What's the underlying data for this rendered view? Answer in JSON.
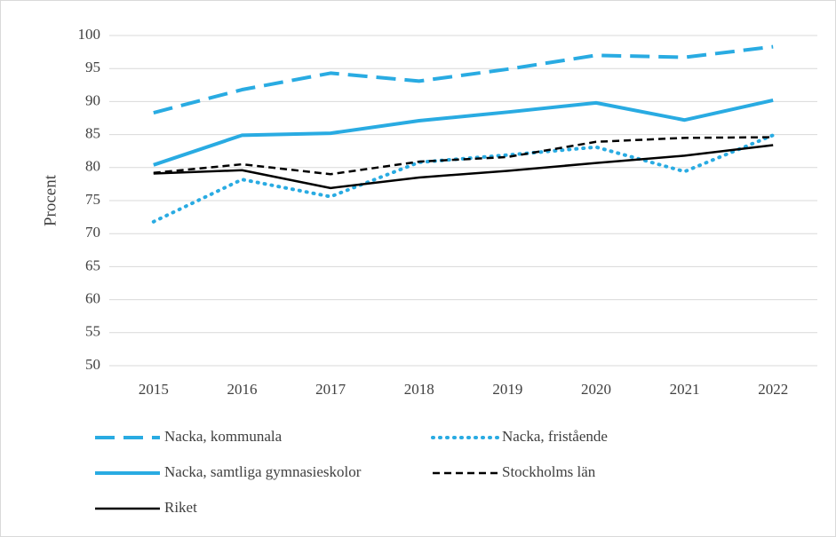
{
  "chart_data": {
    "type": "line",
    "y_label": "Procent",
    "categories": [
      "2015",
      "2016",
      "2017",
      "2018",
      "2019",
      "2020",
      "2021",
      "2022"
    ],
    "series": [
      {
        "name": "Nacka, kommunala",
        "color": "#29abe2",
        "dash": "dashed",
        "values": [
          88.3,
          91.8,
          94.3,
          93.1,
          94.9,
          97.0,
          96.7,
          98.3
        ]
      },
      {
        "name": "Nacka, fristående",
        "color": "#29abe2",
        "dash": "dotted",
        "values": [
          71.8,
          78.2,
          75.6,
          80.8,
          81.9,
          83.1,
          79.4,
          84.9
        ]
      },
      {
        "name": "Nacka, samtliga gymnasieskolor",
        "color": "#29abe2",
        "dash": "solid",
        "values": [
          80.4,
          84.9,
          85.2,
          87.1,
          88.4,
          89.8,
          87.2,
          90.2
        ]
      },
      {
        "name": "Stockholms län",
        "color": "#000000",
        "dash": "dashed",
        "values": [
          79.2,
          80.5,
          79.0,
          80.9,
          81.6,
          83.9,
          84.5,
          84.6
        ]
      },
      {
        "name": "Riket",
        "color": "#000000",
        "dash": "solid",
        "values": [
          79.1,
          79.6,
          76.9,
          78.5,
          79.5,
          80.7,
          81.8,
          83.4
        ]
      }
    ],
    "ylim": [
      50,
      100
    ],
    "yticks": [
      50,
      55,
      60,
      65,
      70,
      75,
      80,
      85,
      90,
      95,
      100
    ],
    "grid": true,
    "legend": "bottom"
  }
}
